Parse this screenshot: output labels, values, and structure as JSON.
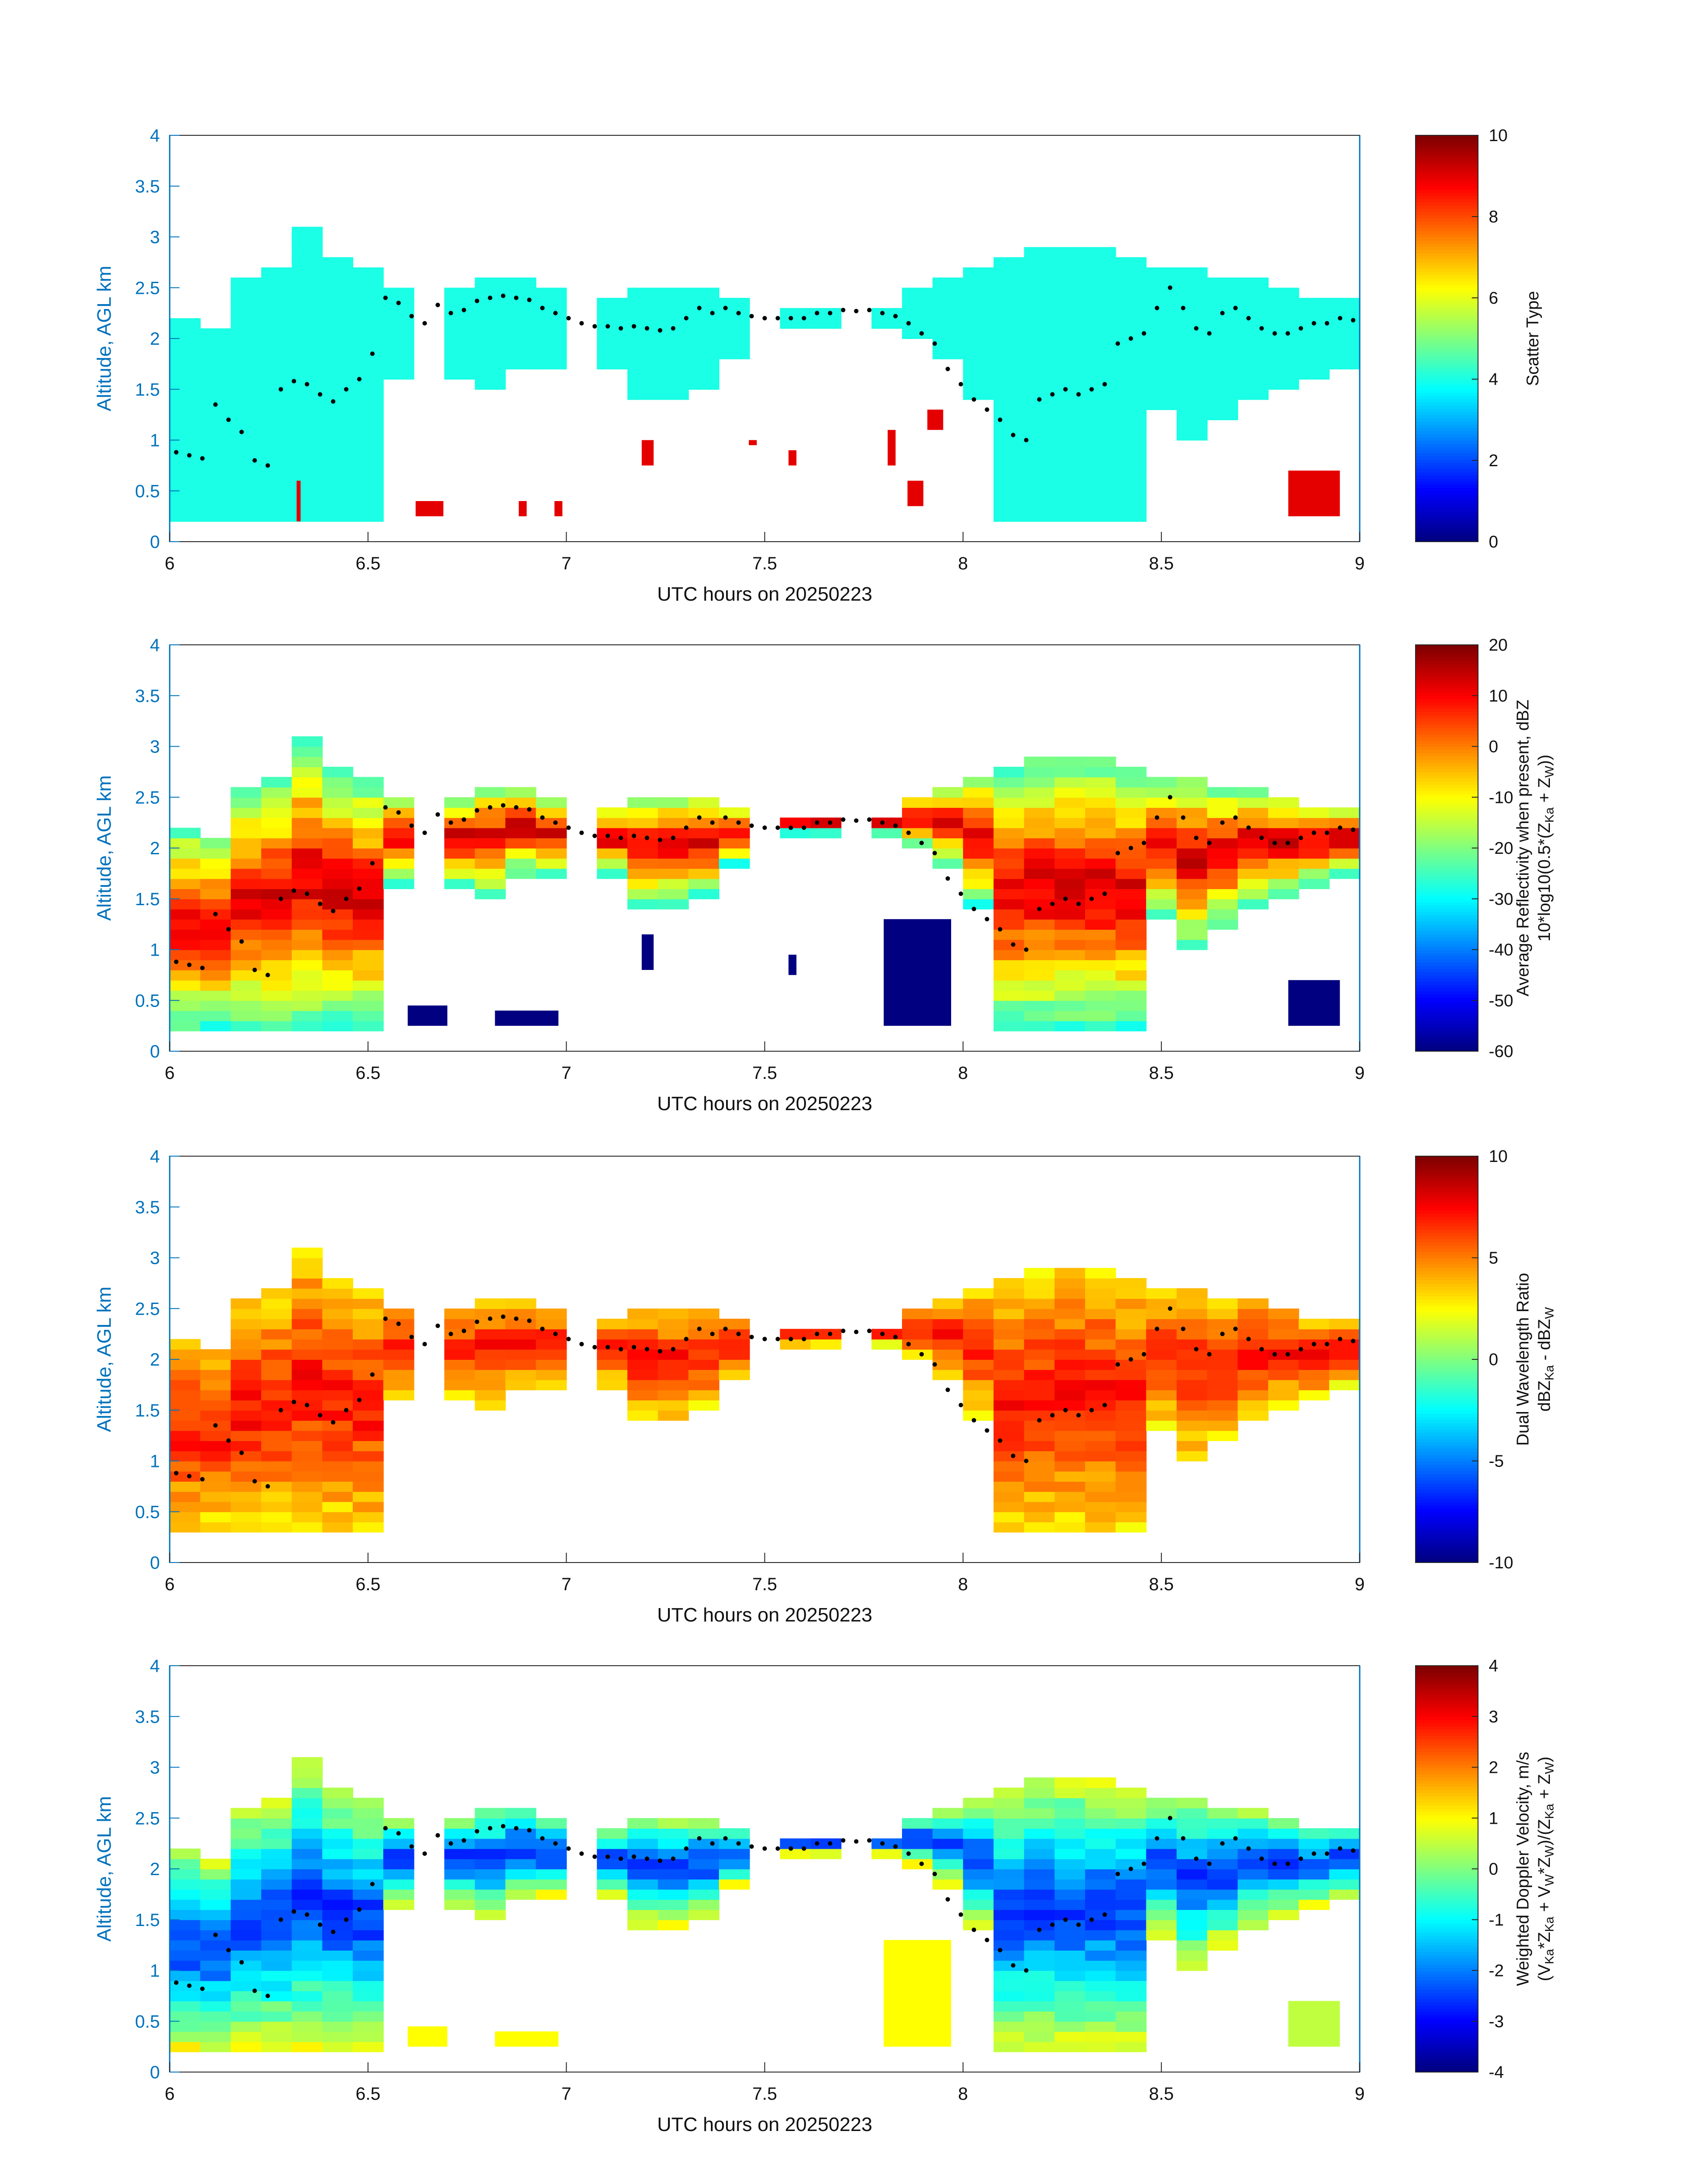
{
  "chart_data": [
    {
      "type": "heatmap",
      "ylabel": "Altitude, AGL km",
      "xlabel": "UTC hours on 20250223",
      "xlim": [
        6,
        9
      ],
      "ylim": [
        0,
        4
      ],
      "xticks": [
        "6",
        "6.5",
        "7",
        "7.5",
        "8",
        "8.5",
        "9"
      ],
      "yticks": [
        "0",
        "0.5",
        "1",
        "1.5",
        "2",
        "2.5",
        "3",
        "3.5",
        "4"
      ],
      "colorbar": {
        "label": [
          "Scatter Type"
        ],
        "range": [
          0,
          10
        ],
        "ticks": [
          "0",
          "2",
          "4",
          "6",
          "8",
          "10"
        ]
      },
      "colormap": "jet",
      "cloud_top_km": [
        2.2,
        2.1,
        2.6,
        2.7,
        3.1,
        2.8,
        2.7,
        2.5,
        null,
        2.5,
        2.6,
        2.6,
        2.5,
        null,
        2.4,
        2.5,
        2.5,
        2.5,
        2.4,
        null,
        2.3,
        2.3,
        null,
        2.3,
        2.5,
        2.6,
        2.7,
        2.8,
        2.9,
        2.9,
        2.9,
        2.8,
        2.7,
        2.7,
        2.6,
        2.6,
        2.5,
        2.4,
        2.4
      ],
      "cloud_base_km": [
        0.2,
        0.2,
        0.2,
        0.2,
        0.2,
        0.2,
        0.2,
        1.6,
        null,
        1.6,
        1.5,
        1.7,
        1.7,
        null,
        1.7,
        1.4,
        1.4,
        1.5,
        1.8,
        null,
        2.1,
        2.1,
        null,
        2.1,
        2.0,
        1.8,
        1.4,
        0.2,
        0.2,
        0.2,
        0.2,
        0.2,
        1.3,
        1.0,
        1.2,
        1.4,
        1.5,
        1.6,
        1.7
      ],
      "fill_value": 4,
      "patches": [
        {
          "value": 9,
          "t": [
            6.32,
            6.33
          ],
          "z": [
            0.2,
            0.6
          ]
        },
        {
          "value": 9,
          "t": [
            6.62,
            6.69
          ],
          "z": [
            0.25,
            0.4
          ]
        },
        {
          "value": 9,
          "t": [
            6.88,
            6.9
          ],
          "z": [
            0.25,
            0.4
          ]
        },
        {
          "value": 9,
          "t": [
            6.97,
            6.99
          ],
          "z": [
            0.25,
            0.4
          ]
        },
        {
          "value": 9,
          "t": [
            7.19,
            7.22
          ],
          "z": [
            0.75,
            1.0
          ]
        },
        {
          "value": 9,
          "t": [
            7.46,
            7.48
          ],
          "z": [
            0.95,
            1.0
          ]
        },
        {
          "value": 9,
          "t": [
            7.56,
            7.58
          ],
          "z": [
            0.75,
            0.9
          ]
        },
        {
          "value": 9,
          "t": [
            7.81,
            7.83
          ],
          "z": [
            0.75,
            1.1
          ]
        },
        {
          "value": 9,
          "t": [
            7.86,
            7.9
          ],
          "z": [
            0.35,
            0.6
          ]
        },
        {
          "value": 9,
          "t": [
            7.91,
            7.95
          ],
          "z": [
            1.1,
            1.3
          ]
        },
        {
          "value": 9,
          "t": [
            8.82,
            8.95
          ],
          "z": [
            0.25,
            0.7
          ]
        }
      ],
      "dots_km": [
        0.88,
        0.85,
        0.82,
        1.35,
        1.2,
        1.08,
        0.8,
        0.75,
        1.5,
        1.58,
        1.55,
        1.45,
        1.38,
        1.5,
        1.6,
        1.85,
        2.4,
        2.35,
        2.22,
        2.15,
        2.33,
        2.25,
        2.28,
        2.37,
        2.4,
        2.42,
        2.4,
        2.38,
        2.3,
        2.25,
        2.2,
        2.15,
        2.12,
        2.12,
        2.1,
        2.12,
        2.1,
        2.08,
        2.1,
        2.2,
        2.3,
        2.25,
        2.3,
        2.25,
        2.22,
        2.2,
        2.2,
        2.2,
        2.2,
        2.25,
        2.25,
        2.28,
        2.27,
        2.28,
        2.25,
        2.22,
        2.15,
        2.05,
        1.95,
        1.7,
        1.55,
        1.4,
        1.3,
        1.2,
        1.05,
        1.0,
        1.4,
        1.45,
        1.5,
        1.45,
        1.5,
        1.55,
        1.95,
        2.0,
        2.05,
        2.3,
        2.5,
        2.3,
        2.1,
        2.05,
        2.25,
        2.3,
        2.2,
        2.1,
        2.05,
        2.05,
        2.1,
        2.15,
        2.15,
        2.2,
        2.18
      ]
    },
    {
      "type": "heatmap",
      "ylabel": "Altitude, AGL km",
      "xlabel": "UTC hours on 20250223",
      "xlim": [
        6,
        9
      ],
      "ylim": [
        0,
        4
      ],
      "xticks": [
        "6",
        "6.5",
        "7",
        "7.5",
        "8",
        "8.5",
        "9"
      ],
      "yticks": [
        "0",
        "0.5",
        "1",
        "1.5",
        "2",
        "2.5",
        "3",
        "3.5",
        "4"
      ],
      "colorbar": {
        "label": [
          "Average Reflectivity when present, dBZ",
          "10*log10(0.5*(Z",
          "Ka",
          " + Z",
          "W",
          "))"
        ],
        "range": [
          -60,
          20
        ],
        "ticks": [
          "-60",
          "-50",
          "-40",
          "-30",
          "-20",
          "-10",
          "0",
          "10",
          "20"
        ]
      },
      "colormap": "jet",
      "cloud_top_km": [
        2.2,
        2.1,
        2.6,
        2.7,
        3.1,
        2.8,
        2.7,
        2.5,
        null,
        2.5,
        2.6,
        2.6,
        2.5,
        null,
        2.4,
        2.5,
        2.5,
        2.5,
        2.4,
        null,
        2.3,
        2.3,
        null,
        2.3,
        2.5,
        2.6,
        2.7,
        2.8,
        2.9,
        2.9,
        2.9,
        2.8,
        2.7,
        2.7,
        2.6,
        2.6,
        2.5,
        2.4,
        2.4
      ],
      "cloud_base_km": [
        0.2,
        0.2,
        0.2,
        0.2,
        0.2,
        0.2,
        0.2,
        1.6,
        null,
        1.6,
        1.5,
        1.7,
        1.7,
        null,
        1.7,
        1.4,
        1.4,
        1.5,
        1.8,
        null,
        2.1,
        2.1,
        null,
        2.1,
        2.0,
        1.8,
        1.4,
        0.2,
        0.2,
        0.2,
        0.2,
        0.2,
        1.3,
        1.0,
        1.2,
        1.4,
        1.5,
        1.6,
        1.7
      ],
      "core_value": 12,
      "edge_value": -25,
      "bottom_patches": [
        {
          "value": -60,
          "t": [
            6.6,
            6.7
          ],
          "z": [
            0.25,
            0.45
          ]
        },
        {
          "value": -60,
          "t": [
            6.82,
            6.98
          ],
          "z": [
            0.25,
            0.4
          ]
        },
        {
          "value": -60,
          "t": [
            7.19,
            7.22
          ],
          "z": [
            0.8,
            1.15
          ]
        },
        {
          "value": -60,
          "t": [
            7.56,
            7.58
          ],
          "z": [
            0.75,
            0.95
          ]
        },
        {
          "value": -60,
          "t": [
            7.8,
            7.97
          ],
          "z": [
            0.25,
            1.3
          ]
        },
        {
          "value": -60,
          "t": [
            8.82,
            8.95
          ],
          "z": [
            0.25,
            0.7
          ]
        }
      ],
      "dots_km": [
        0.88,
        0.85,
        0.82,
        1.35,
        1.2,
        1.08,
        0.8,
        0.75,
        1.5,
        1.58,
        1.55,
        1.45,
        1.38,
        1.5,
        1.6,
        1.85,
        2.4,
        2.35,
        2.22,
        2.15,
        2.33,
        2.25,
        2.28,
        2.37,
        2.4,
        2.42,
        2.4,
        2.38,
        2.3,
        2.25,
        2.2,
        2.15,
        2.12,
        2.12,
        2.1,
        2.12,
        2.1,
        2.08,
        2.1,
        2.2,
        2.3,
        2.25,
        2.3,
        2.25,
        2.22,
        2.2,
        2.2,
        2.2,
        2.2,
        2.25,
        2.25,
        2.28,
        2.27,
        2.28,
        2.25,
        2.22,
        2.15,
        2.05,
        1.95,
        1.7,
        1.55,
        1.4,
        1.3,
        1.2,
        1.05,
        1.0,
        1.4,
        1.45,
        1.5,
        1.45,
        1.5,
        1.55,
        1.95,
        2.0,
        2.05,
        2.3,
        2.5,
        2.3,
        2.1,
        2.05,
        2.25,
        2.3,
        2.2,
        2.1,
        2.05,
        2.05,
        2.1,
        2.15,
        2.15,
        2.2,
        2.18
      ]
    },
    {
      "type": "heatmap",
      "ylabel": "Altitude, AGL km",
      "xlabel": "UTC hours on 20250223",
      "xlim": [
        6,
        9
      ],
      "ylim": [
        0,
        4
      ],
      "xticks": [
        "6",
        "6.5",
        "7",
        "7.5",
        "8",
        "8.5",
        "9"
      ],
      "yticks": [
        "0",
        "0.5",
        "1",
        "1.5",
        "2",
        "2.5",
        "3",
        "3.5",
        "4"
      ],
      "colorbar": {
        "label": [
          "Dual Wavelength Ratio",
          "dBZ",
          "Ka",
          " - dBZ",
          "W"
        ],
        "range": [
          -10,
          10
        ],
        "ticks": [
          "-10",
          "-5",
          "0",
          "5",
          "10"
        ]
      },
      "colormap": "jet",
      "cloud_top_km": [
        2.2,
        2.1,
        2.6,
        2.7,
        3.1,
        2.8,
        2.7,
        2.5,
        null,
        2.5,
        2.6,
        2.6,
        2.5,
        null,
        2.4,
        2.5,
        2.5,
        2.5,
        2.4,
        null,
        2.3,
        2.3,
        null,
        2.3,
        2.5,
        2.6,
        2.7,
        2.8,
        2.9,
        2.9,
        2.9,
        2.8,
        2.7,
        2.7,
        2.6,
        2.6,
        2.5,
        2.4,
        2.4
      ],
      "cloud_base_km": [
        0.3,
        0.3,
        0.3,
        0.3,
        0.3,
        0.3,
        0.3,
        1.6,
        null,
        1.6,
        1.5,
        1.7,
        1.7,
        null,
        1.7,
        1.4,
        1.4,
        1.5,
        1.8,
        null,
        2.1,
        2.1,
        null,
        2.1,
        2.0,
        1.8,
        1.4,
        0.3,
        0.3,
        0.3,
        0.3,
        0.3,
        1.3,
        1.0,
        1.2,
        1.4,
        1.5,
        1.6,
        1.7
      ],
      "core_value": 7,
      "edge_value": 3,
      "dots_km": [
        0.88,
        0.85,
        0.82,
        1.35,
        1.2,
        1.08,
        0.8,
        0.75,
        1.5,
        1.58,
        1.55,
        1.45,
        1.38,
        1.5,
        1.6,
        1.85,
        2.4,
        2.35,
        2.22,
        2.15,
        2.33,
        2.25,
        2.28,
        2.37,
        2.4,
        2.42,
        2.4,
        2.38,
        2.3,
        2.25,
        2.2,
        2.15,
        2.12,
        2.12,
        2.1,
        2.12,
        2.1,
        2.08,
        2.1,
        2.2,
        2.3,
        2.25,
        2.3,
        2.25,
        2.22,
        2.2,
        2.2,
        2.2,
        2.2,
        2.25,
        2.25,
        2.28,
        2.27,
        2.28,
        2.25,
        2.22,
        2.15,
        2.05,
        1.95,
        1.7,
        1.55,
        1.4,
        1.3,
        1.2,
        1.05,
        1.0,
        1.4,
        1.45,
        1.5,
        1.45,
        1.5,
        1.55,
        1.95,
        2.0,
        2.05,
        2.3,
        2.5,
        2.3,
        2.1,
        2.05,
        2.25,
        2.3,
        2.2,
        2.1,
        2.05,
        2.05,
        2.1,
        2.15,
        2.15,
        2.2,
        2.18
      ]
    },
    {
      "type": "heatmap",
      "ylabel": "Altitude, AGL km",
      "xlabel": "UTC hours on 20250223",
      "xlim": [
        6,
        9
      ],
      "ylim": [
        0,
        4
      ],
      "xticks": [
        "6",
        "6.5",
        "7",
        "7.5",
        "8",
        "8.5",
        "9"
      ],
      "yticks": [
        "0",
        "0.5",
        "1",
        "1.5",
        "2",
        "2.5",
        "3",
        "3.5",
        "4"
      ],
      "colorbar": {
        "label": [
          "Weighted Doppler Velocity, m/s",
          "(V",
          "Ka",
          "*Z",
          "Ka",
          " + V",
          "W",
          "*Z",
          "W",
          ")/(Z",
          "Ka",
          " + Z",
          "W",
          ")"
        ],
        "range": [
          -4,
          4
        ],
        "ticks": [
          "-4",
          "-3",
          "-2",
          "-1",
          "0",
          "1",
          "2",
          "3",
          "4"
        ]
      },
      "colormap": "jet",
      "cloud_top_km": [
        2.2,
        2.1,
        2.6,
        2.7,
        3.1,
        2.8,
        2.7,
        2.5,
        null,
        2.5,
        2.6,
        2.6,
        2.5,
        null,
        2.4,
        2.5,
        2.5,
        2.5,
        2.4,
        null,
        2.3,
        2.3,
        null,
        2.3,
        2.5,
        2.6,
        2.7,
        2.8,
        2.9,
        2.9,
        2.9,
        2.8,
        2.7,
        2.7,
        2.6,
        2.6,
        2.5,
        2.4,
        2.4
      ],
      "cloud_base_km": [
        0.2,
        0.2,
        0.2,
        0.2,
        0.2,
        0.2,
        0.2,
        1.6,
        null,
        1.6,
        1.5,
        1.7,
        1.7,
        null,
        1.7,
        1.4,
        1.4,
        1.5,
        1.8,
        null,
        2.1,
        2.1,
        null,
        2.1,
        2.0,
        1.8,
        1.4,
        0.2,
        0.2,
        0.2,
        0.2,
        0.2,
        1.3,
        1.0,
        1.2,
        1.4,
        1.5,
        1.6,
        1.7
      ],
      "core_value": -2.5,
      "edge_value": 0.8,
      "bottom_patches": [
        {
          "value": 1.0,
          "t": [
            6.6,
            6.7
          ],
          "z": [
            0.25,
            0.45
          ]
        },
        {
          "value": 1.0,
          "t": [
            6.82,
            6.98
          ],
          "z": [
            0.25,
            0.4
          ]
        },
        {
          "value": 1.0,
          "t": [
            7.8,
            7.97
          ],
          "z": [
            0.25,
            1.3
          ]
        },
        {
          "value": 0.5,
          "t": [
            8.82,
            8.95
          ],
          "z": [
            0.25,
            0.7
          ]
        }
      ],
      "dots_km": [
        0.88,
        0.85,
        0.82,
        1.35,
        1.2,
        1.08,
        0.8,
        0.75,
        1.5,
        1.58,
        1.55,
        1.45,
        1.38,
        1.5,
        1.6,
        1.85,
        2.4,
        2.35,
        2.22,
        2.15,
        2.33,
        2.25,
        2.28,
        2.37,
        2.4,
        2.42,
        2.4,
        2.38,
        2.3,
        2.25,
        2.2,
        2.15,
        2.12,
        2.12,
        2.1,
        2.12,
        2.1,
        2.08,
        2.1,
        2.2,
        2.3,
        2.25,
        2.3,
        2.25,
        2.22,
        2.2,
        2.2,
        2.2,
        2.2,
        2.25,
        2.25,
        2.28,
        2.27,
        2.28,
        2.25,
        2.22,
        2.15,
        2.05,
        1.95,
        1.7,
        1.55,
        1.4,
        1.3,
        1.2,
        1.05,
        1.0,
        1.4,
        1.45,
        1.5,
        1.45,
        1.5,
        1.55,
        1.95,
        2.0,
        2.05,
        2.3,
        2.5,
        2.3,
        2.1,
        2.05,
        2.25,
        2.3,
        2.2,
        2.1,
        2.05,
        2.05,
        2.1,
        2.15,
        2.15,
        2.2,
        2.18
      ]
    }
  ]
}
